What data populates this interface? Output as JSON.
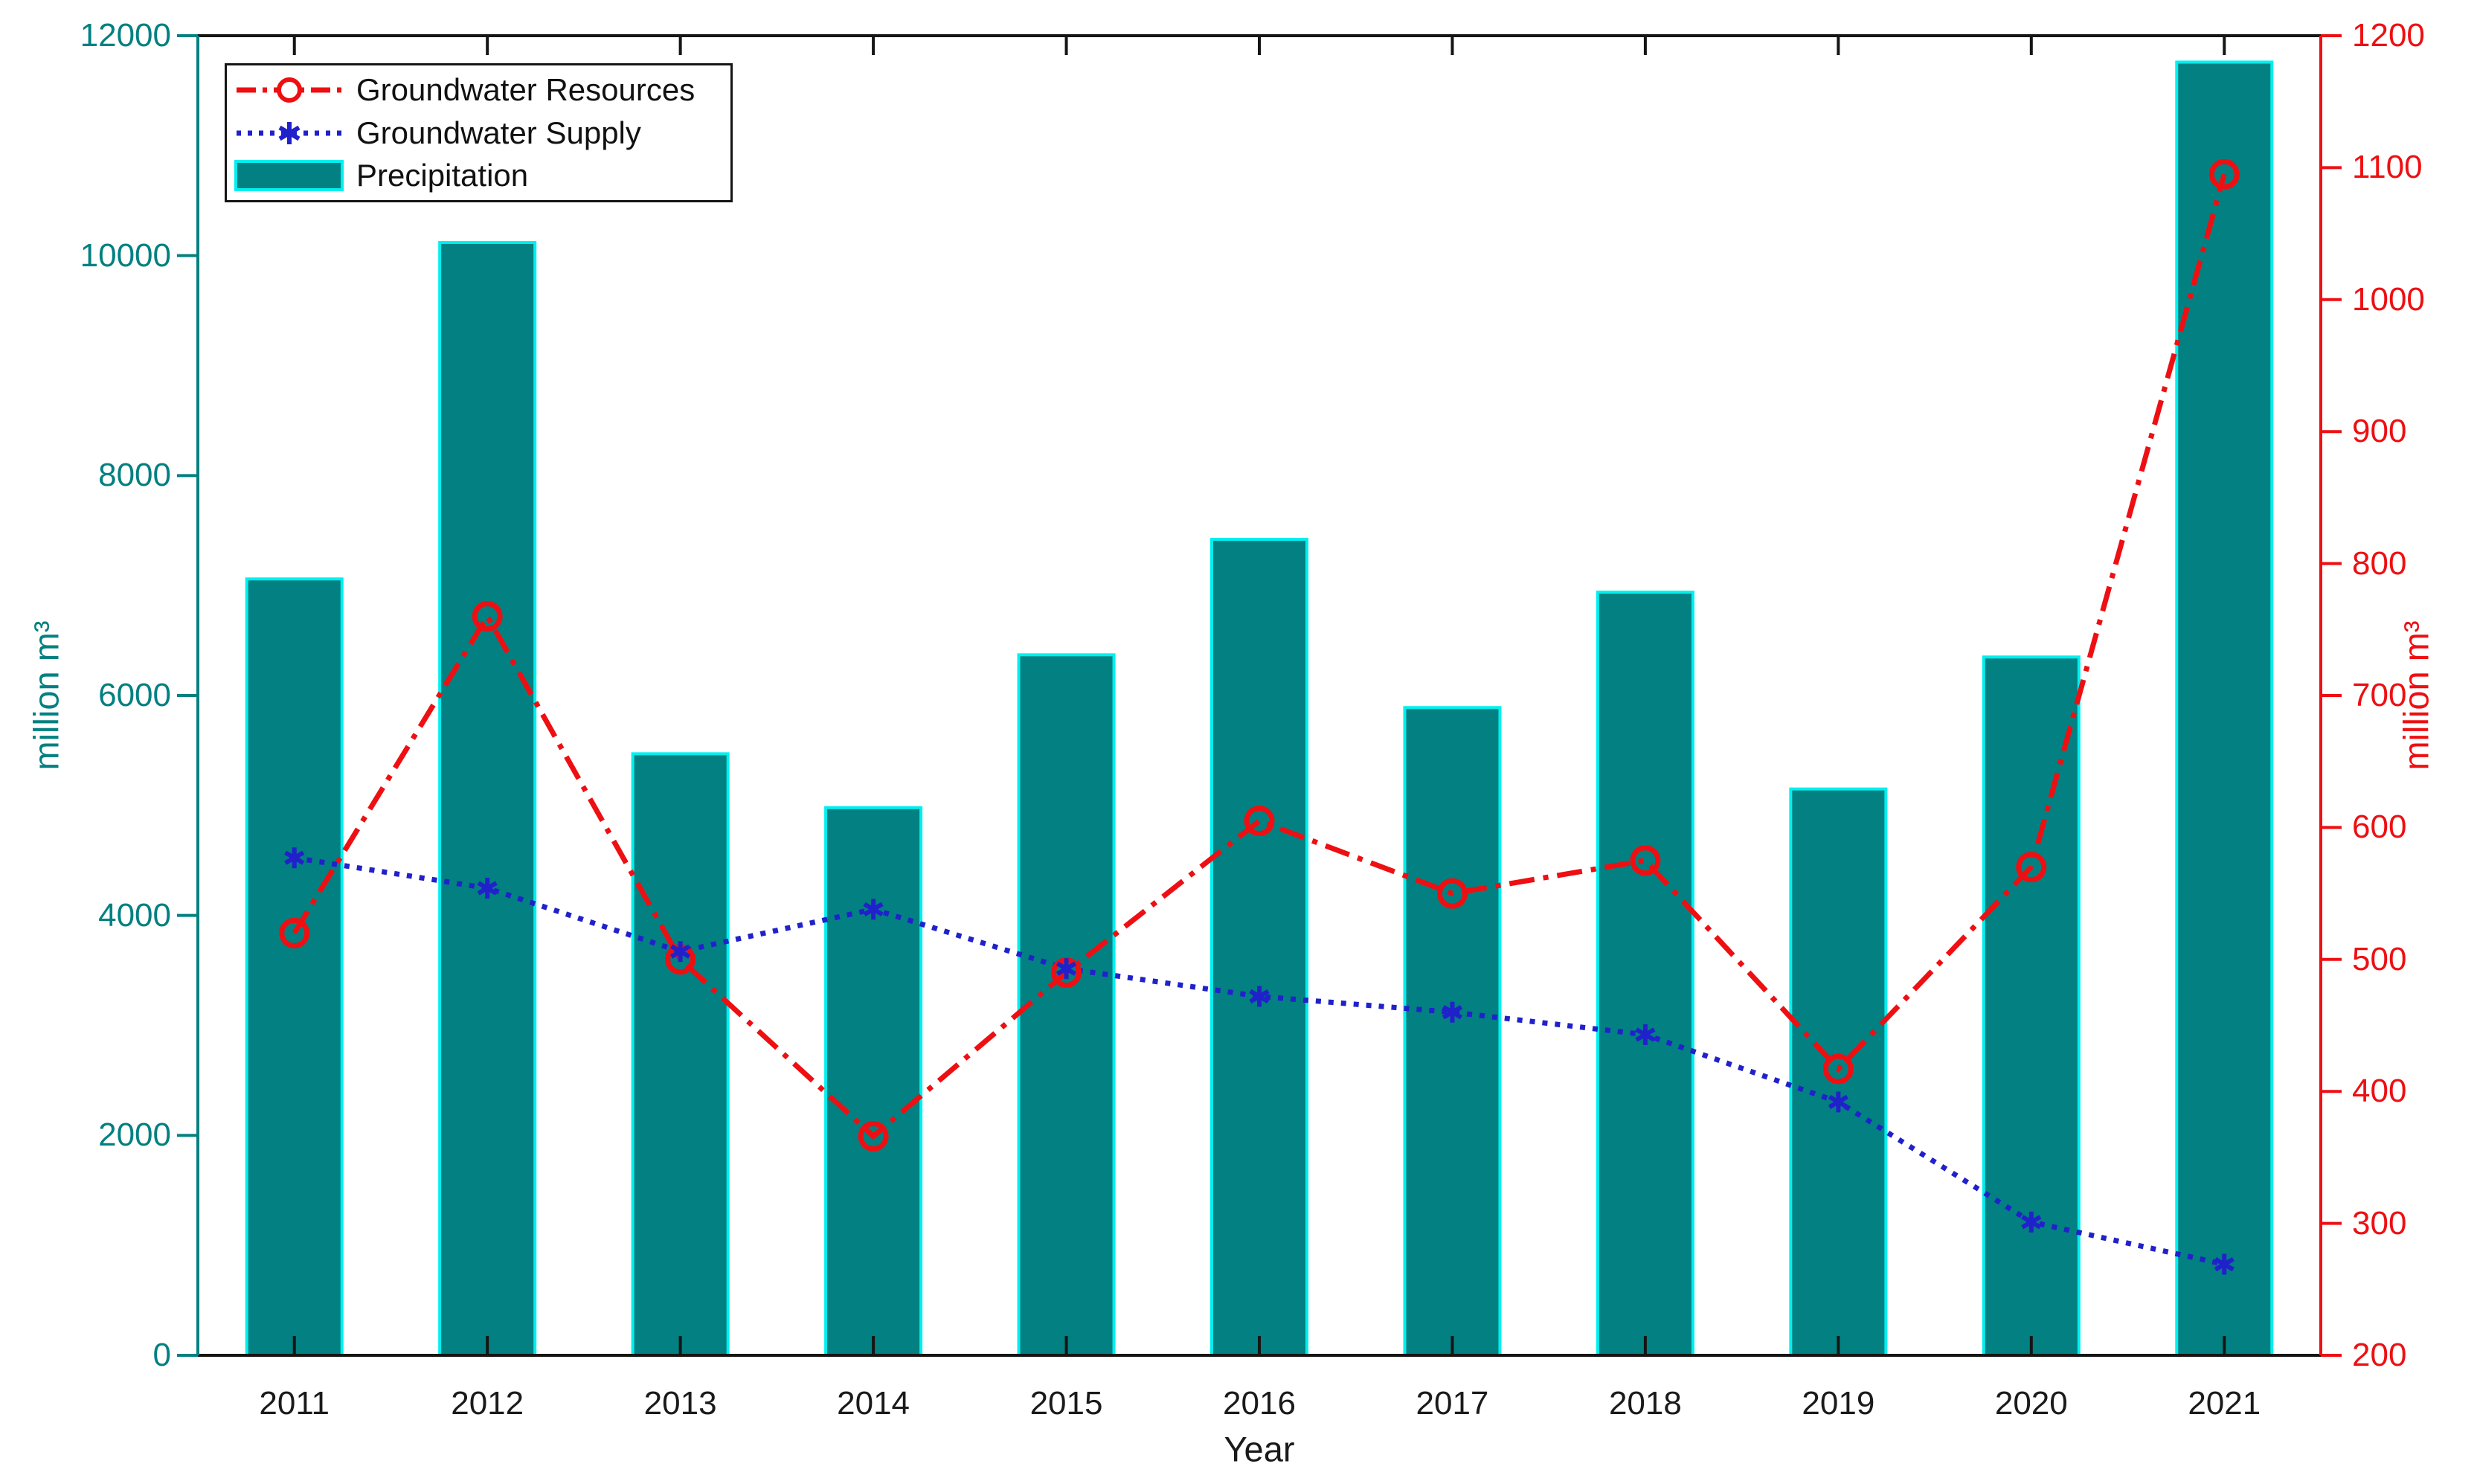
{
  "chart_data": {
    "type": "combo",
    "title": "",
    "x": [
      "2011",
      "2012",
      "2013",
      "2014",
      "2015",
      "2016",
      "2017",
      "2018",
      "2019",
      "2020",
      "2021"
    ],
    "x_axis": {
      "label": "Year",
      "ticks": [
        "2011",
        "2012",
        "2013",
        "2014",
        "2015",
        "2016",
        "2017",
        "2018",
        "2019",
        "2020",
        "2021"
      ]
    },
    "left_axis": {
      "label": "million m³",
      "color": "#038081",
      "min": 0,
      "max": 12000,
      "ticks": [
        0,
        2000,
        4000,
        6000,
        8000,
        10000,
        12000
      ]
    },
    "right_axis": {
      "label": "million m³",
      "color": "#EE0F12",
      "min": 200,
      "max": 1200,
      "ticks": [
        200,
        300,
        400,
        500,
        600,
        700,
        800,
        900,
        1000,
        1100,
        1200
      ]
    },
    "series": [
      {
        "name": "Groundwater Resources",
        "type": "line",
        "axis": "right",
        "line_style": "dash-dot",
        "marker": "open-circle",
        "color": "#EE0F12",
        "values": [
          520,
          760,
          500,
          366,
          490,
          605,
          550,
          575,
          417,
          570,
          1095
        ]
      },
      {
        "name": "Groundwater Supply",
        "type": "line",
        "axis": "right",
        "line_style": "dotted",
        "marker": "asterisk",
        "color": "#2121CB",
        "values": [
          577,
          554,
          506,
          538,
          493,
          472,
          460,
          443,
          392,
          301,
          269
        ]
      },
      {
        "name": "Precipitation",
        "type": "bar",
        "axis": "left",
        "color": "#038081",
        "edge_color": "#00EFEF",
        "values": [
          7060,
          10120,
          5470,
          4980,
          6370,
          7420,
          5890,
          6940,
          5150,
          6350,
          11760
        ]
      }
    ],
    "legend": {
      "position": "top-left",
      "entries": [
        "Groundwater Resources",
        "Groundwater Supply",
        "Precipitation"
      ]
    },
    "grid": false,
    "plot_border_color": "#151515",
    "background": "#ffffff"
  }
}
